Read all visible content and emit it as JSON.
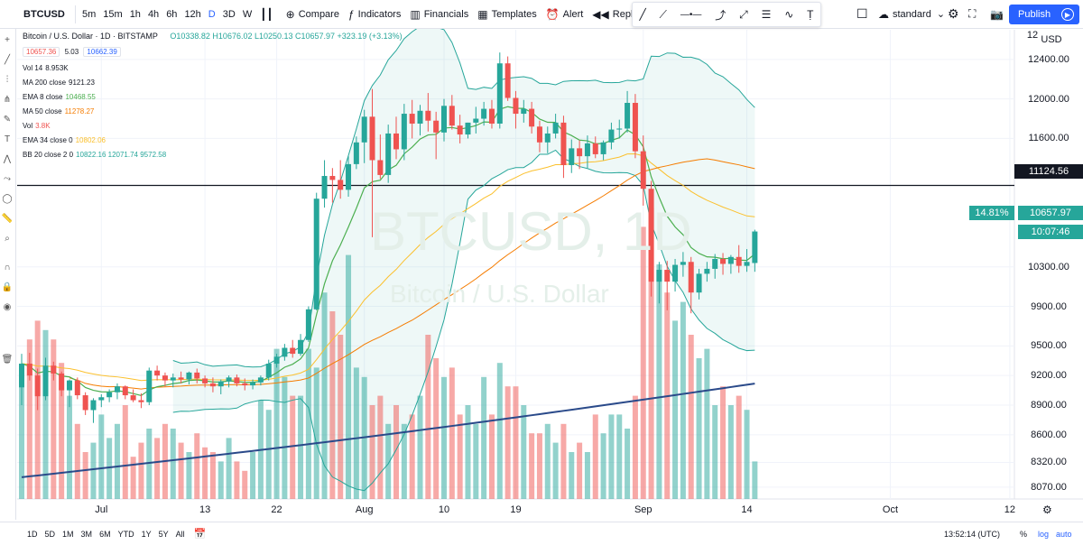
{
  "symbol": "BTCUSD",
  "intervals": [
    "5m",
    "15m",
    "1h",
    "4h",
    "6h",
    "12h",
    "D",
    "3D",
    "W"
  ],
  "active_interval": "D",
  "toolbar": {
    "compare": "Compare",
    "indicators": "Indicators",
    "financials": "Financials",
    "templates": "Templates",
    "alert": "Alert",
    "replay": "Replay",
    "layout": "standard",
    "publish": "Publish"
  },
  "legend": {
    "title": "Bitcoin / U.S. Dollar · 1D · BITSTAMP",
    "ohlc": "O10338.82 H10676.02 L10250.13 C10657.97 +323.19 (+3.13%)",
    "bid": "10657.36",
    "spread": "5.03",
    "ask": "10662.39",
    "rows": [
      {
        "name": "Vol 14",
        "value": "8.953K",
        "color": "#131722"
      },
      {
        "name": "MA 200 close",
        "value": "9121.23",
        "color": "#131722"
      },
      {
        "name": "EMA 8 close",
        "value": "10468.55",
        "color": "#4caf50"
      },
      {
        "name": "MA 50 close",
        "value": "11278.27",
        "color": "#f57c00"
      },
      {
        "name": "Vol",
        "value": "3.8K",
        "color": "#ef5350"
      },
      {
        "name": "EMA 34 close 0",
        "value": "10802.06",
        "color": "#fbc02d"
      },
      {
        "name": "BB 20 close 2 0",
        "value": "10822.16  12071.74  9572.58",
        "color": "#26a69a"
      }
    ]
  },
  "watermark": {
    "symbol": "BTCUSD, 1D",
    "name": "Bitcoin / U.S. Dollar"
  },
  "price_axis": {
    "unit": "USD",
    "ticks": [
      "12400.00",
      "12000.00",
      "11600.00",
      "10300.00",
      "9900.00",
      "9500.00",
      "9200.00",
      "8900.00",
      "8600.00",
      "8320.00",
      "8070.00"
    ],
    "line_label": "11124.56",
    "current": "10657.97",
    "change_pct": "14.81%",
    "countdown": "10:07:46",
    "top_partial": "12"
  },
  "time_axis": [
    "Jul",
    "13",
    "22",
    "Aug",
    "10",
    "19",
    "Sep",
    "14",
    "Oct",
    "12"
  ],
  "ranges": [
    "1D",
    "5D",
    "1M",
    "3M",
    "6M",
    "YTD",
    "1Y",
    "5Y",
    "All"
  ],
  "status": {
    "time": "13:52:14 (UTC)",
    "percent": "%",
    "log": "log",
    "auto": "auto"
  },
  "chart_data": {
    "type": "candlestick",
    "y_range": [
      7950,
      12700
    ],
    "horizontal_line": 11124.56,
    "candles": [
      [
        9080,
        9420,
        8900,
        9320
      ],
      [
        9320,
        9430,
        9150,
        9200
      ],
      [
        9200,
        9270,
        8850,
        8990
      ],
      [
        8990,
        9380,
        8950,
        9300
      ],
      [
        9300,
        9340,
        9150,
        9220
      ],
      [
        9220,
        9240,
        8990,
        9050
      ],
      [
        9050,
        9160,
        8880,
        9150
      ],
      [
        9150,
        9180,
        8960,
        9000
      ],
      [
        9000,
        9030,
        8800,
        8850
      ],
      [
        8850,
        8970,
        8720,
        8950
      ],
      [
        8950,
        9010,
        8880,
        8980
      ],
      [
        8980,
        9060,
        8930,
        9030
      ],
      [
        9030,
        9120,
        8960,
        9090
      ],
      [
        9090,
        9100,
        8960,
        9000
      ],
      [
        9000,
        9060,
        8930,
        8950
      ],
      [
        8950,
        9020,
        8870,
        8930
      ],
      [
        8930,
        9280,
        8900,
        9250
      ],
      [
        9250,
        9300,
        9150,
        9200
      ],
      [
        9200,
        9230,
        9090,
        9150
      ],
      [
        9150,
        9220,
        9080,
        9180
      ],
      [
        9180,
        9240,
        9120,
        9160
      ],
      [
        9160,
        9240,
        9110,
        9230
      ],
      [
        9230,
        9270,
        9120,
        9170
      ],
      [
        9170,
        9200,
        9080,
        9120
      ],
      [
        9120,
        9180,
        9030,
        9090
      ],
      [
        9090,
        9160,
        9010,
        9140
      ],
      [
        9140,
        9200,
        9080,
        9180
      ],
      [
        9180,
        9210,
        9090,
        9120
      ],
      [
        9120,
        9170,
        9050,
        9100
      ],
      [
        9100,
        9160,
        9060,
        9130
      ],
      [
        9130,
        9200,
        9100,
        9180
      ],
      [
        9180,
        9360,
        9150,
        9320
      ],
      [
        9320,
        9420,
        9280,
        9390
      ],
      [
        9390,
        9520,
        9350,
        9480
      ],
      [
        9480,
        9560,
        9380,
        9420
      ],
      [
        9420,
        9620,
        9400,
        9560
      ],
      [
        9560,
        9900,
        9540,
        9870
      ],
      [
        9870,
        11050,
        9860,
        10990
      ],
      [
        10990,
        11380,
        10900,
        11220
      ],
      [
        11220,
        11300,
        10950,
        11180
      ],
      [
        11180,
        11380,
        10990,
        11080
      ],
      [
        11080,
        11420,
        11010,
        11340
      ],
      [
        11340,
        11620,
        11290,
        11560
      ],
      [
        11560,
        11890,
        11350,
        11820
      ],
      [
        11820,
        12100,
        10600,
        11380
      ],
      [
        11380,
        11640,
        11190,
        11230
      ],
      [
        11230,
        11740,
        11150,
        11650
      ],
      [
        11650,
        11820,
        11390,
        11490
      ],
      [
        11490,
        11950,
        11380,
        11850
      ],
      [
        11850,
        11990,
        11600,
        11750
      ],
      [
        11750,
        11940,
        11630,
        11880
      ],
      [
        11880,
        12060,
        11670,
        11780
      ],
      [
        11780,
        11870,
        11390,
        11660
      ],
      [
        11660,
        12000,
        11570,
        11930
      ],
      [
        11930,
        12040,
        11690,
        11730
      ],
      [
        11730,
        11840,
        11550,
        11640
      ],
      [
        11640,
        11760,
        11600,
        11760
      ],
      [
        11760,
        11920,
        11650,
        11800
      ],
      [
        11800,
        11970,
        11730,
        11900
      ],
      [
        11900,
        11990,
        11700,
        11750
      ],
      [
        11750,
        12470,
        11700,
        12360
      ],
      [
        12360,
        12430,
        11980,
        12010
      ],
      [
        12010,
        12080,
        11700,
        11850
      ],
      [
        11850,
        11990,
        11760,
        11900
      ],
      [
        11900,
        11970,
        11650,
        11720
      ],
      [
        11720,
        11780,
        11460,
        11560
      ],
      [
        11560,
        11720,
        11450,
        11650
      ],
      [
        11650,
        11850,
        11600,
        11760
      ],
      [
        11760,
        11830,
        11200,
        11330
      ],
      [
        11330,
        11590,
        11250,
        11500
      ],
      [
        11500,
        11580,
        11290,
        11420
      ],
      [
        11420,
        11630,
        11300,
        11550
      ],
      [
        11550,
        11620,
        11400,
        11440
      ],
      [
        11440,
        11580,
        11380,
        11560
      ],
      [
        11560,
        11760,
        11490,
        11690
      ],
      [
        11690,
        11790,
        11600,
        11700
      ],
      [
        11700,
        12080,
        11660,
        11960
      ],
      [
        11960,
        12050,
        11400,
        11470
      ],
      [
        11470,
        11630,
        10920,
        11090
      ],
      [
        11090,
        11170,
        10000,
        10150
      ],
      [
        10150,
        10350,
        9930,
        10270
      ],
      [
        10270,
        10360,
        9860,
        10150
      ],
      [
        10150,
        10380,
        10050,
        10320
      ],
      [
        10320,
        10450,
        10200,
        10350
      ],
      [
        10350,
        10400,
        9830,
        10040
      ],
      [
        10040,
        10280,
        9970,
        10230
      ],
      [
        10230,
        10350,
        10150,
        10280
      ],
      [
        10280,
        10430,
        10180,
        10380
      ],
      [
        10380,
        10440,
        10220,
        10330
      ],
      [
        10330,
        10420,
        10230,
        10400
      ],
      [
        10400,
        10520,
        10240,
        10310
      ],
      [
        10310,
        10480,
        10250,
        10350
      ],
      [
        10338.82,
        10676.02,
        10250.13,
        10657.97
      ]
    ],
    "volume_pct": [
      0.26,
      0.34,
      0.38,
      0.36,
      0.34,
      0.29,
      0.22,
      0.16,
      0.1,
      0.12,
      0.18,
      0.13,
      0.16,
      0.2,
      0.09,
      0.12,
      0.15,
      0.13,
      0.16,
      0.15,
      0.12,
      0.1,
      0.14,
      0.11,
      0.1,
      0.08,
      0.13,
      0.08,
      0.06,
      0.1,
      0.21,
      0.19,
      0.32,
      0.26,
      0.22,
      0.22,
      0.32,
      0.28,
      0.44,
      0.4,
      0.35,
      0.52,
      0.28,
      0.26,
      0.2,
      0.22,
      0.16,
      0.2,
      0.16,
      0.18,
      0.22,
      0.35,
      0.3,
      0.26,
      0.28,
      0.18,
      0.2,
      0.16,
      0.26,
      0.18,
      0.29,
      0.24,
      0.24,
      0.2,
      0.14,
      0.14,
      0.16,
      0.12,
      0.16,
      0.1,
      0.12,
      0.1,
      0.18,
      0.14,
      0.18,
      0.18,
      0.15,
      0.22,
      0.58,
      0.62,
      0.5,
      0.44,
      0.38,
      0.42,
      0.35,
      0.3,
      0.32,
      0.2,
      0.24,
      0.2,
      0.22,
      0.19,
      0.08
    ]
  }
}
